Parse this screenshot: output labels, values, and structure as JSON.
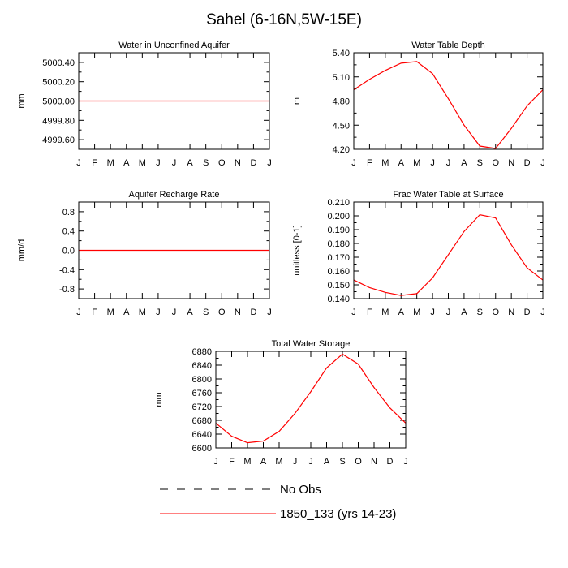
{
  "page": {
    "title": "Sahel (6-16N,5W-15E)"
  },
  "legend": {
    "items": [
      {
        "label": "No Obs",
        "style": "dashed",
        "color": "#000000"
      },
      {
        "label": "1850_133 (yrs 14-23)",
        "style": "solid",
        "color": "#ff0000"
      }
    ]
  },
  "months": [
    "J",
    "F",
    "M",
    "A",
    "M",
    "J",
    "J",
    "A",
    "S",
    "O",
    "N",
    "D",
    "J"
  ],
  "chart_data": [
    {
      "id": "aquifer",
      "type": "line",
      "title": "Water in Unconfined Aquifer",
      "ylabel": "mm",
      "ylim": [
        4999.5,
        5000.5
      ],
      "yticks": [
        4999.6,
        4999.8,
        5000.0,
        5000.2,
        5000.4
      ],
      "ytick_labels": [
        "4999.60",
        "4999.80",
        "5000.00",
        "5000.20",
        "5000.40"
      ],
      "series": [
        {
          "name": "1850_133 (yrs 14-23)",
          "color": "#ff0000",
          "values": [
            5000,
            5000,
            5000,
            5000,
            5000,
            5000,
            5000,
            5000,
            5000,
            5000,
            5000,
            5000,
            5000
          ]
        }
      ]
    },
    {
      "id": "wtd",
      "type": "line",
      "title": "Water Table Depth",
      "ylabel": "m",
      "ylim": [
        4.2,
        5.4
      ],
      "yticks": [
        4.2,
        4.5,
        4.8,
        5.1,
        5.4
      ],
      "ytick_labels": [
        "4.20",
        "4.50",
        "4.80",
        "5.10",
        "5.40"
      ],
      "series": [
        {
          "name": "1850_133 (yrs 14-23)",
          "color": "#ff0000",
          "values": [
            4.94,
            5.07,
            5.18,
            5.27,
            5.29,
            5.14,
            4.83,
            4.5,
            4.24,
            4.21,
            4.46,
            4.74,
            4.94
          ]
        }
      ]
    },
    {
      "id": "recharge",
      "type": "line",
      "title": "Aquifer Recharge Rate",
      "ylabel": "mm/d",
      "ylim": [
        -1.0,
        1.0
      ],
      "yticks": [
        -0.8,
        -0.4,
        0.0,
        0.4,
        0.8
      ],
      "ytick_labels": [
        "-0.8",
        "-0.4",
        "0.0",
        "0.4",
        "0.8"
      ],
      "series": [
        {
          "name": "1850_133 (yrs 14-23)",
          "color": "#ff0000",
          "values": [
            0,
            0,
            0,
            0,
            0,
            0,
            0,
            0,
            0,
            0,
            0,
            0,
            0
          ]
        }
      ]
    },
    {
      "id": "fwt",
      "type": "line",
      "title": "Frac Water Table at Surface",
      "ylabel": "unitless [0-1]",
      "ylim": [
        0.14,
        0.21
      ],
      "yticks": [
        0.14,
        0.15,
        0.16,
        0.17,
        0.18,
        0.19,
        0.2,
        0.21
      ],
      "ytick_labels": [
        "0.140",
        "0.150",
        "0.160",
        "0.170",
        "0.180",
        "0.190",
        "0.200",
        "0.210"
      ],
      "series": [
        {
          "name": "1850_133 (yrs 14-23)",
          "color": "#ff0000",
          "values": [
            0.1535,
            0.148,
            0.1445,
            0.1423,
            0.1436,
            0.155,
            0.1718,
            0.1887,
            0.2008,
            0.1985,
            0.179,
            0.1623,
            0.1535
          ]
        }
      ]
    },
    {
      "id": "tws",
      "type": "line",
      "title": "Total Water Storage",
      "ylabel": "mm",
      "ylim": [
        6600,
        6880
      ],
      "yticks": [
        6600,
        6640,
        6680,
        6720,
        6760,
        6800,
        6840,
        6880
      ],
      "ytick_labels": [
        "6600",
        "6640",
        "6680",
        "6720",
        "6760",
        "6800",
        "6840",
        "6880"
      ],
      "series": [
        {
          "name": "1850_133 (yrs 14-23)",
          "color": "#ff0000",
          "values": [
            6672,
            6634,
            6615,
            6620,
            6648,
            6700,
            6763,
            6832,
            6872,
            6843,
            6775,
            6716,
            6672
          ]
        }
      ]
    }
  ]
}
